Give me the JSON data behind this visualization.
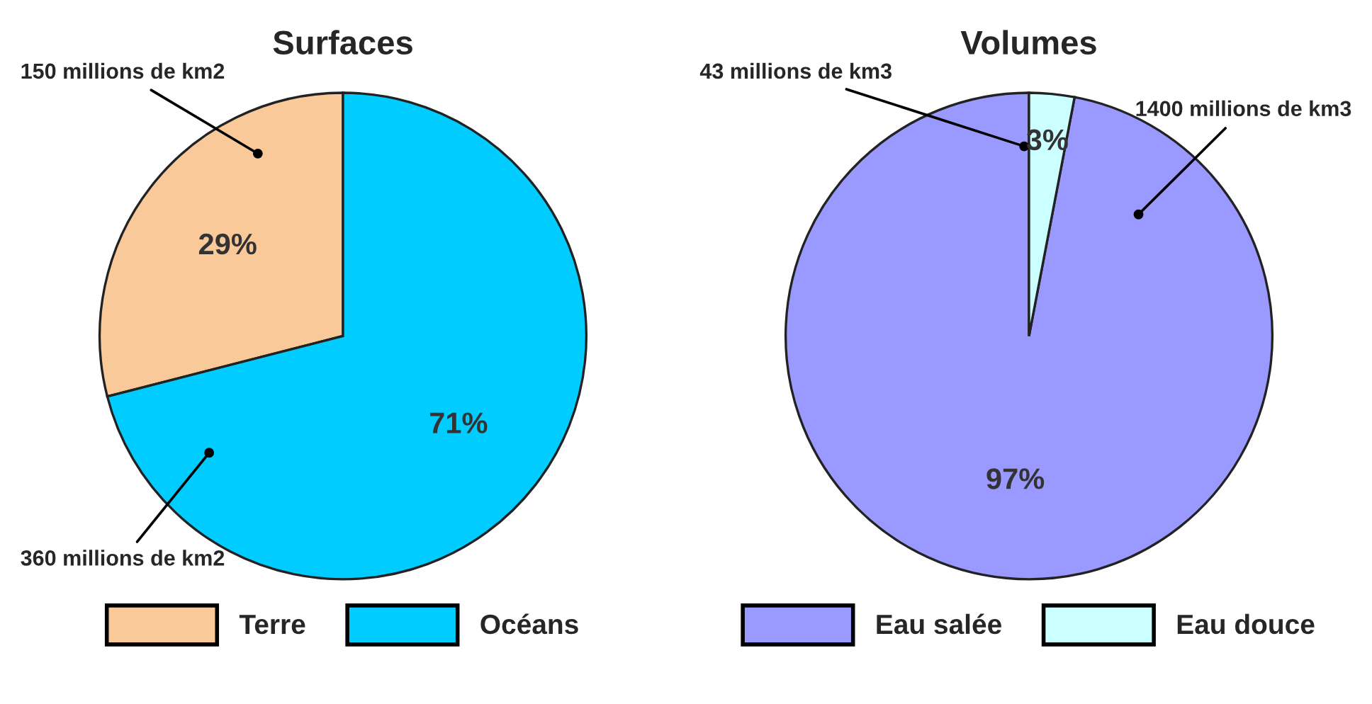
{
  "chart_data": [
    {
      "type": "pie",
      "title": "Surfaces",
      "categories": [
        "Terre",
        "Océans"
      ],
      "values": [
        29,
        71
      ],
      "colors": [
        "#f9c99a",
        "#00ccff"
      ],
      "value_labels": [
        "29%",
        "71%"
      ],
      "legend": "bottom",
      "annotations": [
        "150 millions de km2",
        "360 millions de km2"
      ]
    },
    {
      "type": "pie",
      "title": "Volumes",
      "categories": [
        "Eau salée",
        "Eau douce"
      ],
      "values": [
        97,
        3
      ],
      "colors": [
        "#9999ff",
        "#ccffff"
      ],
      "value_labels": [
        "97%",
        "3%"
      ],
      "legend": "bottom",
      "annotations": [
        "43 millions de km3",
        "1400 millions de km3"
      ]
    }
  ]
}
